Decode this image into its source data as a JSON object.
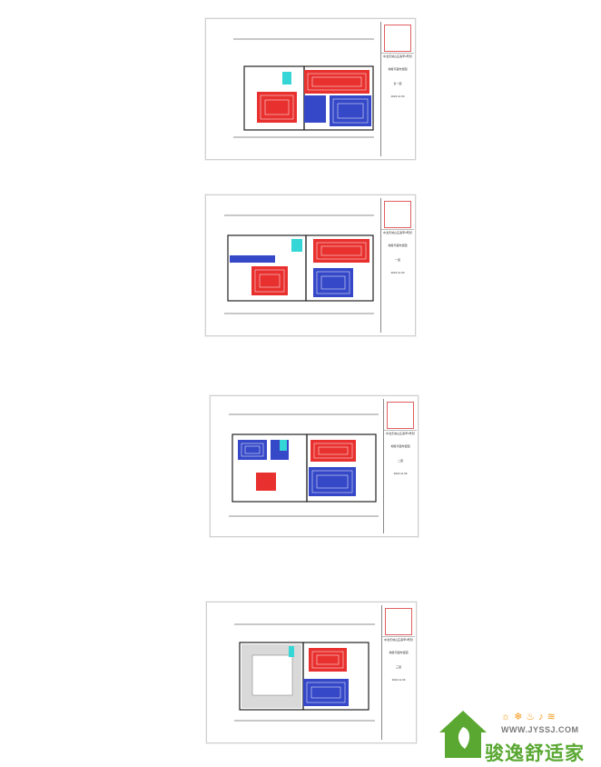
{
  "colors": {
    "hot_loop": "#e8312f",
    "cold_loop": "#3548c8",
    "manifold": "#34d6d6",
    "wall": "#222222",
    "logo_green": "#5aa832",
    "logo_orange": "#f39a1e"
  },
  "sheets": [
    {
      "titleblock": {
        "project": "中冶天城山庄翡翠4号別墅",
        "drawing": "地暖平面布置图",
        "floor": "负一层",
        "date": "2022.11.09"
      }
    },
    {
      "titleblock": {
        "project": "中冶天城山庄翡翠4号別墅",
        "drawing": "地暖平面布置图",
        "floor": "一层",
        "date": "2022.11.09"
      }
    },
    {
      "titleblock": {
        "project": "中冶天城山庄翡翠4号別墅",
        "drawing": "地暖平面布置图",
        "floor": "二层",
        "date": "2022.11.09"
      }
    },
    {
      "titleblock": {
        "project": "中冶天城山庄翡翠4号別墅",
        "drawing": "地暖平面布置图",
        "floor": "三层",
        "date": "2022.11.09"
      }
    }
  ],
  "watermark": {
    "url": "WWW.JYSSJ.COM",
    "name": "骏逸舒适家"
  }
}
